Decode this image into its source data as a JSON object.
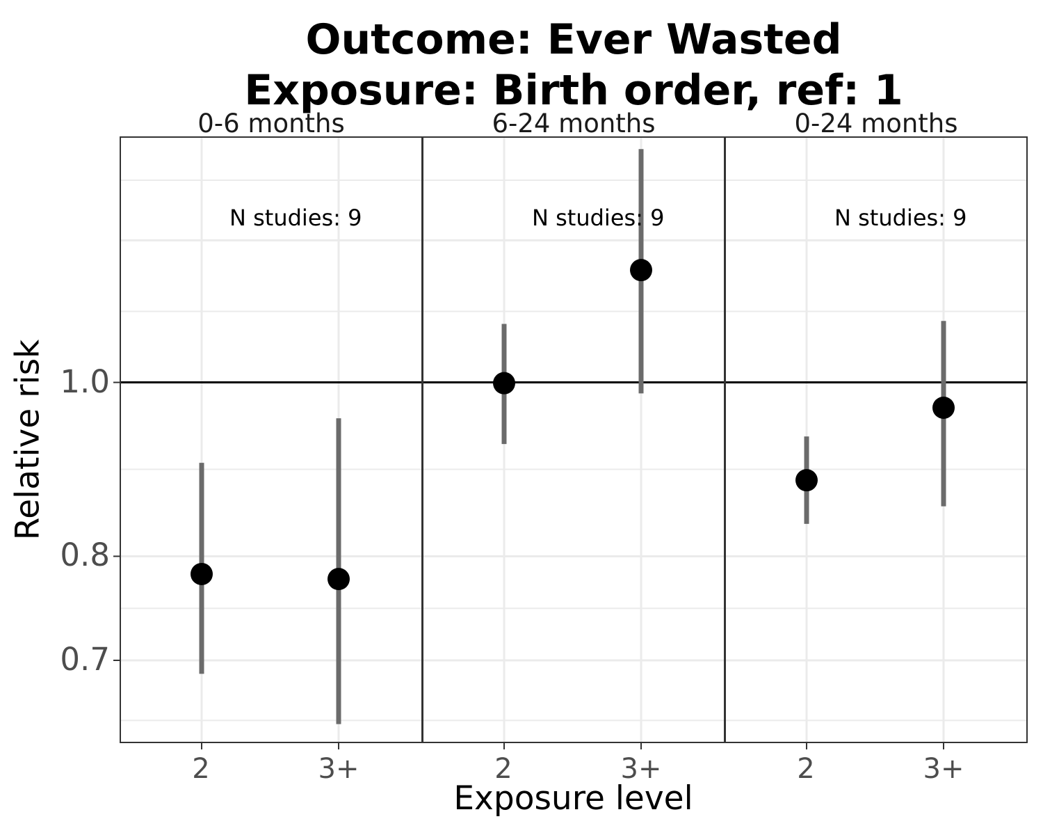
{
  "chart_data": {
    "type": "scatter",
    "title": "Outcome: Ever Wasted",
    "subtitle": "Exposure: Birth order, ref: 1",
    "xlabel": "Exposure level",
    "ylabel": "Relative risk",
    "y_scale": "log",
    "ylim": [
      0.63,
      1.37
    ],
    "y_ticks": [
      0.7,
      0.8,
      1.0
    ],
    "y_tick_labels": [
      "0.7",
      "0.8",
      "1.0"
    ],
    "reference_line": 1.0,
    "grid": true,
    "categories": [
      "2",
      "3+"
    ],
    "panels": [
      {
        "label": "0-6 months",
        "annotation": "N studies: 9",
        "points": [
          {
            "x": "2",
            "estimate": 0.782,
            "lower": 0.688,
            "upper": 0.902
          },
          {
            "x": "3+",
            "estimate": 0.777,
            "lower": 0.645,
            "upper": 0.955
          }
        ]
      },
      {
        "label": "6-24 months",
        "annotation": "N studies: 9",
        "points": [
          {
            "x": "2",
            "estimate": 0.999,
            "lower": 0.924,
            "upper": 1.078
          },
          {
            "x": "3+",
            "estimate": 1.155,
            "lower": 0.986,
            "upper": 1.349
          }
        ]
      },
      {
        "label": "0-24 months",
        "annotation": "N studies: 9",
        "points": [
          {
            "x": "2",
            "estimate": 0.882,
            "lower": 0.834,
            "upper": 0.933
          },
          {
            "x": "3+",
            "estimate": 0.968,
            "lower": 0.853,
            "upper": 1.082
          }
        ]
      }
    ]
  }
}
